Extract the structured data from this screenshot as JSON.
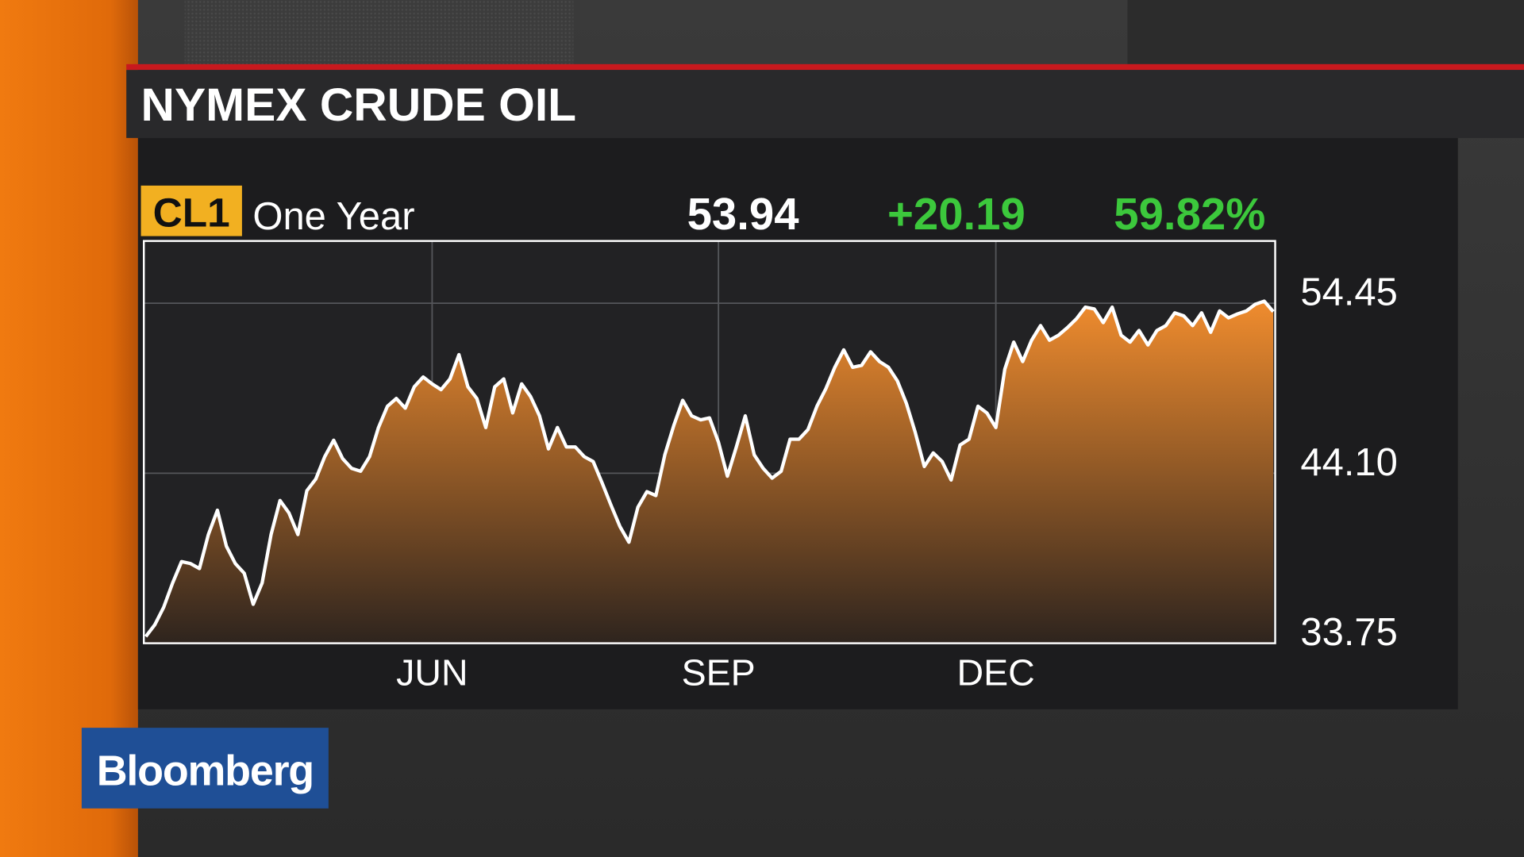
{
  "chart_data": {
    "type": "area",
    "title": "NYMEX CRUDE OIL",
    "ticker": "CL1",
    "period": "One Year",
    "last": "53.94",
    "change": "+20.19",
    "change_pct": "59.82%",
    "categories": [
      null,
      null,
      null,
      null,
      null,
      null,
      null,
      null,
      null,
      null,
      null,
      null,
      null,
      null,
      null,
      null,
      null,
      null,
      null,
      null,
      null,
      null,
      null,
      null,
      null,
      null,
      null,
      null,
      null,
      null,
      null,
      null,
      "JUN",
      null,
      null,
      null,
      null,
      null,
      null,
      null,
      null,
      null,
      null,
      null,
      null,
      null,
      null,
      null,
      null,
      null,
      null,
      null,
      null,
      null,
      null,
      null,
      null,
      null,
      null,
      null,
      null,
      null,
      null,
      null,
      "SEP",
      null,
      null,
      null,
      null,
      null,
      null,
      null,
      null,
      null,
      null,
      null,
      null,
      null,
      null,
      null,
      null,
      null,
      null,
      null,
      null,
      null,
      null,
      null,
      null,
      null,
      null,
      null,
      null,
      null,
      null,
      "DEC",
      null,
      null,
      null,
      null,
      null,
      null,
      null,
      null,
      null,
      null,
      null,
      null,
      null,
      null,
      null,
      null,
      null,
      null,
      null,
      null,
      null,
      null,
      null,
      null,
      null,
      null,
      null,
      null,
      null,
      null,
      null
    ],
    "values": [
      34.16,
      34.87,
      35.94,
      37.42,
      38.72,
      38.6,
      38.3,
      40.37,
      41.85,
      39.66,
      38.6,
      38.01,
      36.12,
      37.42,
      40.37,
      42.44,
      41.68,
      40.37,
      43.04,
      43.75,
      45.11,
      46.11,
      44.99,
      44.4,
      44.22,
      45.11,
      46.88,
      48.18,
      48.65,
      48.06,
      49.36,
      49.96,
      49.54,
      49.19,
      49.84,
      51.32,
      49.36,
      48.65,
      46.88,
      49.36,
      49.84,
      47.77,
      49.54,
      48.77,
      47.59,
      45.58,
      46.88,
      45.7,
      45.7,
      45.11,
      44.81,
      43.51,
      42.15,
      40.85,
      39.9,
      42.03,
      42.98,
      42.74,
      45.22,
      47.0,
      48.54,
      47.59,
      47.35,
      47.47,
      45.99,
      43.92,
      45.7,
      47.59,
      45.22,
      44.4,
      43.8,
      44.22,
      46.17,
      46.17,
      46.76,
      48.18,
      49.25,
      50.55,
      51.61,
      50.55,
      50.67,
      51.49,
      50.9,
      50.55,
      49.72,
      48.36,
      46.58,
      44.51,
      45.34,
      44.81,
      43.69,
      45.82,
      46.17,
      48.18,
      47.77,
      46.88,
      50.43,
      52.08,
      50.9,
      52.2,
      53.09,
      52.2,
      52.5,
      52.97,
      53.5,
      54.21,
      54.1,
      53.27,
      54.21,
      52.5,
      52.08,
      52.79,
      51.91,
      52.79,
      53.09,
      53.86,
      53.68,
      53.09,
      53.86,
      52.68,
      53.98,
      53.56,
      53.8,
      53.98,
      54.39,
      54.57,
      53.94
    ],
    "color": "#ffffff",
    "fill": "#f08c2e",
    "ylim": [
      33.75,
      58.24
    ],
    "yticks": [
      33.75,
      {
        "value": 44.1,
        "label": "44.10"
      },
      54.45
    ],
    "grid": true
  },
  "brand": "Bloomberg"
}
